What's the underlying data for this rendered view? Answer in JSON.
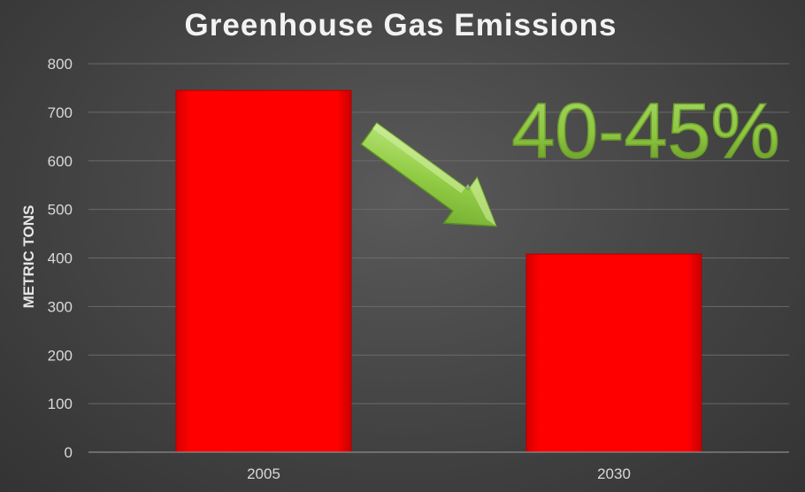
{
  "chart_data": {
    "type": "bar",
    "title": "Greenhouse Gas Emissions",
    "xlabel": "",
    "ylabel": "METRIC TONS",
    "categories": [
      "2005",
      "2030"
    ],
    "values": [
      745,
      408
    ],
    "ylim": [
      0,
      800
    ],
    "yticks": [
      "0",
      "100",
      "200",
      "300",
      "400",
      "500",
      "600",
      "700",
      "800"
    ],
    "grid": true,
    "legend": "none",
    "bar_color": "#ff0000",
    "annotation": {
      "text": "40-45%",
      "color": "#8dc63f",
      "arrow": "arrow-down-right-icon"
    }
  }
}
